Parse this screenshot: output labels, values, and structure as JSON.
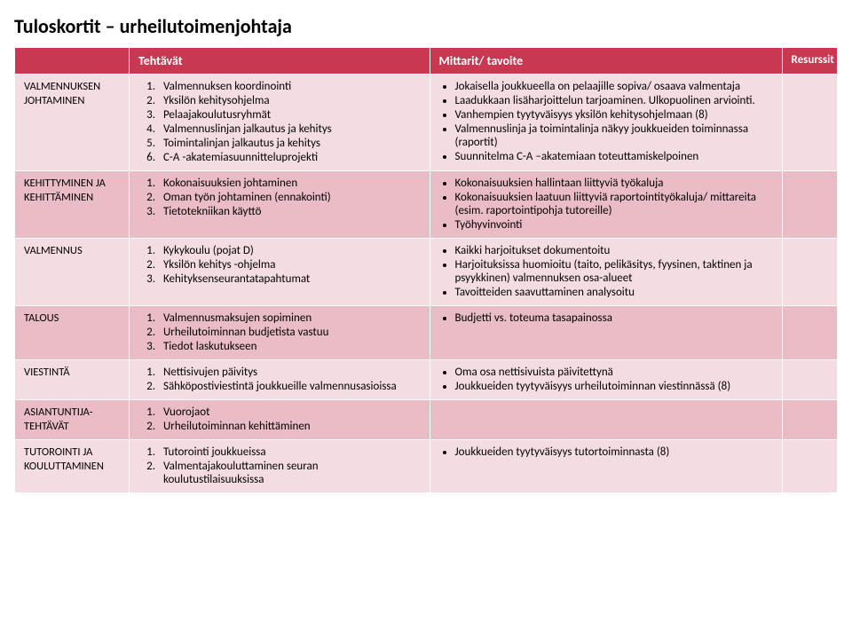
{
  "title": "Tuloskortit – urheilutoimenjohtaja",
  "headers": {
    "col1": "",
    "col2": "Tehtävät",
    "col3": "Mittarit/ tavoite",
    "col4": "Resurssit"
  },
  "rows": [
    {
      "label": "VALMENNUKSEN JOHTAMINEN",
      "tasks": [
        "Valmennuksen koordinointi",
        "Yksilön kehitysohjelma",
        "Pelaajakoulutusryhmät",
        "Valmennuslinjan jalkautus ja kehitys",
        "Toimintalinjan jalkautus ja kehitys",
        "C-A -akatemiasuunnitteluprojekti"
      ],
      "mittari": [
        "Jokaisella joukkueella on pelaajille sopiva/ osaava valmentaja",
        "Laadukkaan lisäharjoittelun tarjoaminen. Ulkopuolinen arviointi.",
        "Vanhempien tyytyväisyys yksilön kehitysohjelmaan (8)",
        "Valmennuslinja ja toimintalinja näkyy joukkueiden toiminnassa (raportit)",
        "Suunnitelma C-A –akatemiaan toteuttamiskelpoinen"
      ]
    },
    {
      "label": "KEHITTYMINEN JA KEHITTÄMINEN",
      "tasks": [
        "Kokonaisuuksien johtaminen",
        "Oman työn johtaminen (ennakointi)",
        "Tietotekniikan käyttö"
      ],
      "mittari": [
        "Kokonaisuuksien hallintaan liittyviä työkaluja",
        "Kokonaisuuksien laatuun liittyviä raportointityökaluja/ mittareita (esim. raportointipohja tutoreille)",
        "Työhyvinvointi"
      ]
    },
    {
      "label": "VALMENNUS",
      "tasks": [
        "Kykykoulu (pojat D)",
        "Yksilön kehitys -ohjelma",
        "Kehityksenseurantatapahtumat"
      ],
      "mittari": [
        "Kaikki harjoitukset dokumentoitu",
        "Harjoituksissa huomioitu (taito, pelikäsitys, fyysinen, taktinen ja psyykkinen) valmennuksen osa-alueet",
        "Tavoitteiden saavuttaminen analysoitu"
      ]
    },
    {
      "label": "TALOUS",
      "tasks": [
        "Valmennusmaksujen sopiminen",
        "Urheilutoiminnan budjetista vastuu",
        "Tiedot laskutukseen"
      ],
      "mittari": [
        "Budjetti vs. toteuma tasapainossa"
      ]
    },
    {
      "label": "VIESTINTÄ",
      "tasks": [
        "Nettisivujen päivitys",
        "Sähköpostiviestintä joukkueille valmennusasioissa"
      ],
      "mittari": [
        "Oma osa nettisivuista päivitettynä",
        "Joukkueiden tyytyväisyys urheilutoiminnan viestinnässä (8)"
      ]
    },
    {
      "label": "ASIANTUNTIJA-TEHTÄVÄT",
      "tasks": [
        "Vuorojaot",
        "Urheilutoiminnan kehittäminen"
      ],
      "mittari": []
    },
    {
      "label": "TUTOROINTI JA KOULUTTAMINEN",
      "tasks": [
        "Tutorointi joukkueissa",
        "Valmentajakouluttaminen seuran koulutustilaisuuksissa"
      ],
      "mittari": [
        "Joukkueiden tyytyväisyys tutortoiminnasta (8)"
      ]
    }
  ]
}
